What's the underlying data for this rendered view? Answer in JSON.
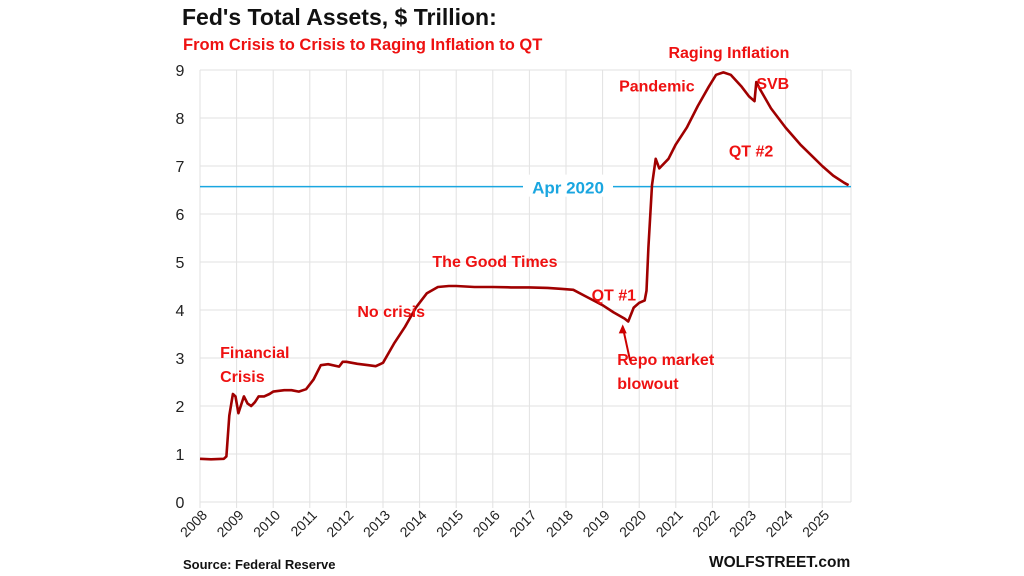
{
  "chart_data": {
    "type": "line",
    "title": "Fed's Total Assets, $ Trillion:",
    "subtitle": "From Crisis to Crisis to Raging Inflation to QT",
    "xlabel": "",
    "ylabel": "",
    "xlim": [
      2008,
      2025.75
    ],
    "ylim": [
      0,
      9
    ],
    "grid": true,
    "legend": "none",
    "x_tick_labels": [
      "2008",
      "2009",
      "2010",
      "2011",
      "2012",
      "2013",
      "2014",
      "2015",
      "2016",
      "2017",
      "2018",
      "2019",
      "2020",
      "2021",
      "2022",
      "2023",
      "2024",
      "2025"
    ],
    "y_tick_labels": [
      "0",
      "1",
      "2",
      "3",
      "4",
      "5",
      "6",
      "7",
      "8",
      "9"
    ],
    "series": [
      {
        "name": "Fed Total Assets",
        "color": "#a00000",
        "x": [
          2008.0,
          2008.3,
          2008.65,
          2008.72,
          2008.8,
          2008.9,
          2008.97,
          2009.05,
          2009.2,
          2009.3,
          2009.4,
          2009.5,
          2009.6,
          2009.75,
          2009.9,
          2010.0,
          2010.3,
          2010.5,
          2010.7,
          2010.9,
          2011.1,
          2011.3,
          2011.5,
          2011.8,
          2011.9,
          2012.0,
          2012.3,
          2012.6,
          2012.8,
          2013.0,
          2013.3,
          2013.6,
          2013.9,
          2014.2,
          2014.5,
          2014.8,
          2015.0,
          2015.5,
          2016.0,
          2016.5,
          2017.0,
          2017.5,
          2017.9,
          2018.2,
          2018.5,
          2018.8,
          2019.0,
          2019.3,
          2019.6,
          2019.7,
          2019.85,
          2020.0,
          2020.15,
          2020.2,
          2020.25,
          2020.35,
          2020.45,
          2020.55,
          2020.8,
          2021.0,
          2021.3,
          2021.6,
          2021.9,
          2022.1,
          2022.3,
          2022.5,
          2022.8,
          2023.0,
          2023.15,
          2023.2,
          2023.3,
          2023.6,
          2024.0,
          2024.4,
          2024.8,
          2025.0,
          2025.3,
          2025.6,
          2025.72
        ],
        "y": [
          0.9,
          0.89,
          0.9,
          0.95,
          1.8,
          2.25,
          2.2,
          1.85,
          2.2,
          2.05,
          2.0,
          2.08,
          2.2,
          2.2,
          2.25,
          2.3,
          2.33,
          2.33,
          2.3,
          2.35,
          2.55,
          2.85,
          2.87,
          2.82,
          2.92,
          2.92,
          2.88,
          2.85,
          2.83,
          2.9,
          3.3,
          3.65,
          4.05,
          4.35,
          4.48,
          4.5,
          4.5,
          4.48,
          4.48,
          4.47,
          4.47,
          4.46,
          4.44,
          4.42,
          4.3,
          4.18,
          4.1,
          3.95,
          3.82,
          3.76,
          4.05,
          4.15,
          4.2,
          4.4,
          5.3,
          6.6,
          7.15,
          6.95,
          7.15,
          7.45,
          7.8,
          8.25,
          8.65,
          8.9,
          8.95,
          8.9,
          8.65,
          8.45,
          8.35,
          8.75,
          8.6,
          8.2,
          7.8,
          7.45,
          7.15,
          7.0,
          6.8,
          6.65,
          6.6
        ]
      }
    ],
    "reference_line": {
      "label": "Apr 2020",
      "y": 6.57,
      "color": "#1aa6e0"
    },
    "annotations": [
      {
        "text": "Financial",
        "x": 2008.55,
        "y": 3.0
      },
      {
        "text": "Crisis",
        "x": 2008.55,
        "y": 2.5
      },
      {
        "text": "No crisis",
        "x": 2012.3,
        "y": 3.85
      },
      {
        "text": "The Good Times",
        "x": 2014.35,
        "y": 4.9
      },
      {
        "text": "QT #1",
        "x": 2018.7,
        "y": 4.2
      },
      {
        "text": "Repo market",
        "x": 2019.4,
        "y": 2.85
      },
      {
        "text": "blowout",
        "x": 2019.4,
        "y": 2.35
      },
      {
        "text": "Pandemic",
        "x": 2019.45,
        "y": 8.55
      },
      {
        "text": "Raging  Inflation",
        "x": 2020.8,
        "y": 9.25
      },
      {
        "text": "SVB",
        "x": 2023.2,
        "y": 8.6
      },
      {
        "text": "QT #2",
        "x": 2022.45,
        "y": 7.2
      }
    ]
  },
  "source": "Source: Federal Reserve",
  "brand": "WOLFSTREET.com"
}
